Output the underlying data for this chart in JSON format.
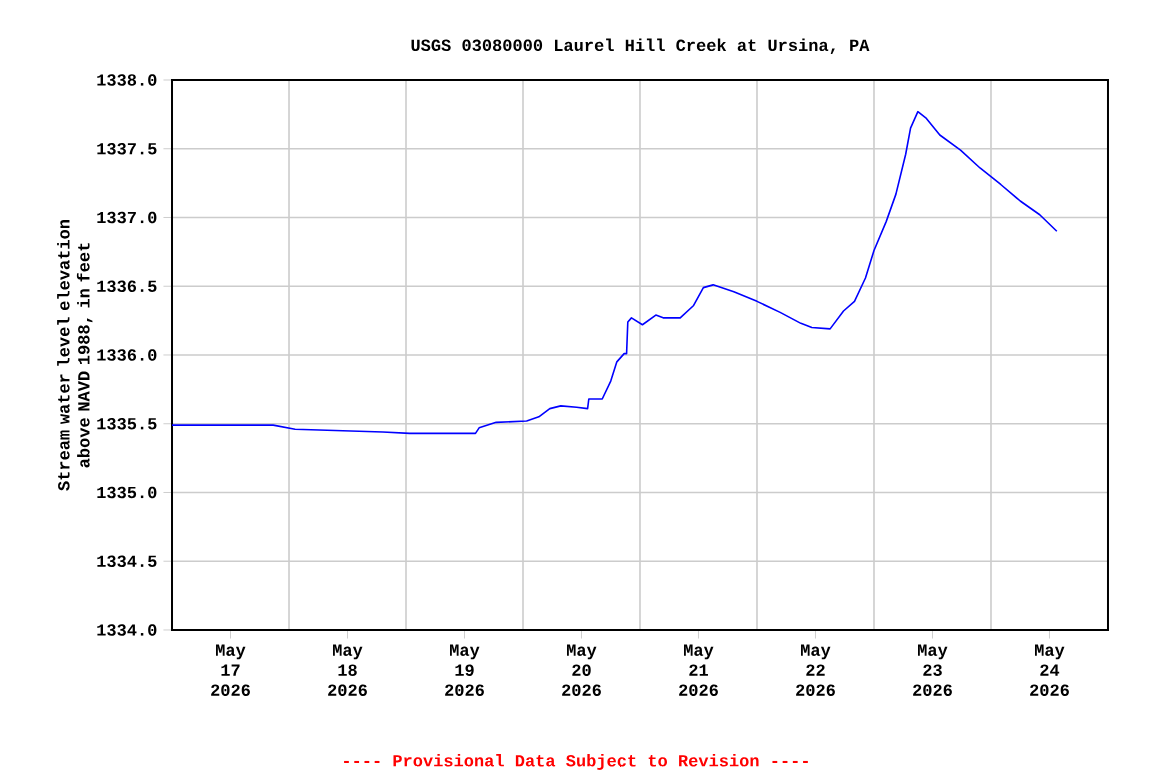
{
  "chart_data": {
    "type": "line",
    "title": "USGS 03080000 Laurel Hill Creek at Ursina, PA",
    "ylabel": "Stream water level elevation above NAVD 1988, in feet",
    "annotations": [
      "---- Provisional Data Subject to Revision ----"
    ],
    "x": [
      "2026-05-17T00:00",
      "2026-05-17T20:45",
      "2026-05-18T01:15",
      "2026-05-18T19:15",
      "2026-05-19T00:45",
      "2026-05-19T14:15",
      "2026-05-19T15:00",
      "2026-05-19T18:30",
      "2026-05-20T00:45",
      "2026-05-20T03:15",
      "2026-05-20T05:30",
      "2026-05-20T07:45",
      "2026-05-20T11:00",
      "2026-05-20T13:15",
      "2026-05-20T13:30",
      "2026-05-20T16:15",
      "2026-05-20T18:00",
      "2026-05-20T19:15",
      "2026-05-20T20:45",
      "2026-05-20T21:15",
      "2026-05-20T21:30",
      "2026-05-20T22:15",
      "2026-05-21T00:30",
      "2026-05-21T03:15",
      "2026-05-21T04:45",
      "2026-05-21T08:15",
      "2026-05-21T11:00",
      "2026-05-21T13:00",
      "2026-05-21T15:00",
      "2026-05-21T19:15",
      "2026-05-22T00:00",
      "2026-05-22T04:45",
      "2026-05-22T09:00",
      "2026-05-22T11:15",
      "2026-05-22T15:00",
      "2026-05-22T17:45",
      "2026-05-22T20:00",
      "2026-05-22T22:15",
      "2026-05-23T00:00",
      "2026-05-23T02:30",
      "2026-05-23T04:30",
      "2026-05-23T06:30",
      "2026-05-23T07:30",
      "2026-05-23T09:00",
      "2026-05-23T10:45",
      "2026-05-23T13:30",
      "2026-05-23T17:45",
      "2026-05-23T21:45",
      "2026-05-24T02:00",
      "2026-05-24T06:00",
      "2026-05-24T10:00",
      "2026-05-24T13:30"
    ],
    "series": [
      {
        "color": "#0000ff",
        "values": [
          1335.49,
          1335.49,
          1335.46,
          1335.44,
          1335.43,
          1335.43,
          1335.47,
          1335.51,
          1335.52,
          1335.55,
          1335.61,
          1335.63,
          1335.62,
          1335.61,
          1335.68,
          1335.68,
          1335.81,
          1335.95,
          1336.01,
          1336.01,
          1336.24,
          1336.27,
          1336.22,
          1336.29,
          1336.27,
          1336.27,
          1336.36,
          1336.49,
          1336.51,
          1336.46,
          1336.39,
          1336.31,
          1336.23,
          1336.2,
          1336.19,
          1336.32,
          1336.39,
          1336.56,
          1336.76,
          1336.97,
          1337.17,
          1337.46,
          1337.65,
          1337.77,
          1337.72,
          1337.6,
          1337.49,
          1337.36,
          1337.24,
          1337.12,
          1337.02,
          1336.9
        ]
      }
    ],
    "xlim": [
      "2026-05-17T00:00",
      "2026-05-25T00:00"
    ],
    "xticks": [
      {
        "value": "2026-05-17T12:00",
        "label": "May 17 2026"
      },
      {
        "value": "2026-05-18T12:00",
        "label": "May 18 2026"
      },
      {
        "value": "2026-05-19T12:00",
        "label": "May 19 2026"
      },
      {
        "value": "2026-05-20T12:00",
        "label": "May 20 2026"
      },
      {
        "value": "2026-05-21T12:00",
        "label": "May 21 2026"
      },
      {
        "value": "2026-05-22T12:00",
        "label": "May 22 2026"
      },
      {
        "value": "2026-05-23T12:00",
        "label": "May 23 2026"
      },
      {
        "value": "2026-05-24T12:00",
        "label": "May 24 2026"
      },
      {
        "value": "2026-05-18T00:00",
        "label": null
      },
      {
        "value": "2026-05-19T00:00",
        "label": null
      },
      {
        "value": "2026-05-20T00:00",
        "label": null
      },
      {
        "value": "2026-05-21T00:00",
        "label": null
      },
      {
        "value": "2026-05-22T00:00",
        "label": null
      },
      {
        "value": "2026-05-23T00:00",
        "label": null
      },
      {
        "value": "2026-05-24T00:00",
        "label": null
      }
    ],
    "ylim": [
      1334.0,
      1338.0
    ],
    "yticks": [
      {
        "value": 1334.0,
        "label": "1334.0"
      },
      {
        "value": 1334.5,
        "label": "1334.5"
      },
      {
        "value": 1335.0,
        "label": "1335.0"
      },
      {
        "value": 1335.5,
        "label": "1335.5"
      },
      {
        "value": 1336.0,
        "label": "1336.0"
      },
      {
        "value": 1336.5,
        "label": "1336.5"
      },
      {
        "value": 1337.0,
        "label": "1337.0"
      },
      {
        "value": 1337.5,
        "label": "1337.5"
      },
      {
        "value": 1338.0,
        "label": "1338.0"
      }
    ],
    "grid": true
  }
}
